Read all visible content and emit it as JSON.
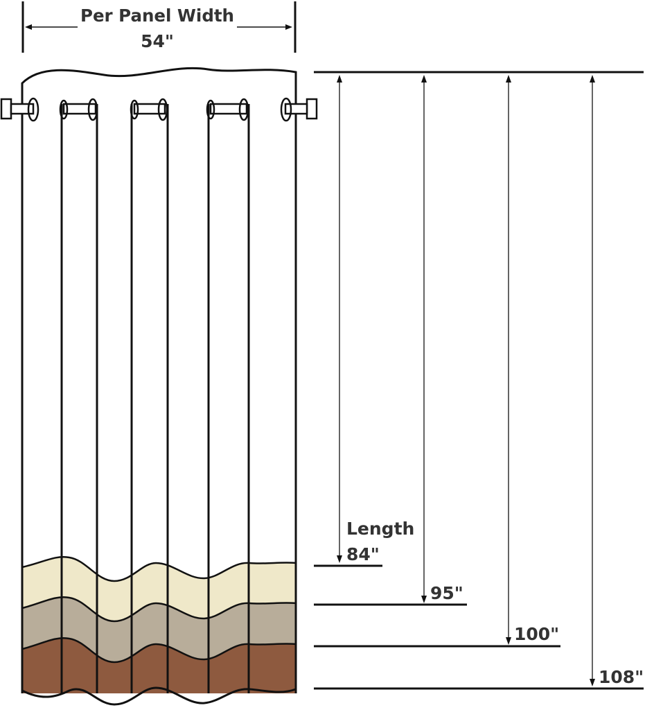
{
  "width_label": "Per Panel Width",
  "width_value": "54\"",
  "length_heading": "Length",
  "lengths": [
    "84\"",
    "95\"",
    "100\"",
    "108\""
  ],
  "colors": {
    "outline": "#111111",
    "text": "#333333",
    "band_cream": "#efe8c9",
    "band_taupe": "#b8ad9a",
    "band_brown": "#8e5a3f"
  }
}
